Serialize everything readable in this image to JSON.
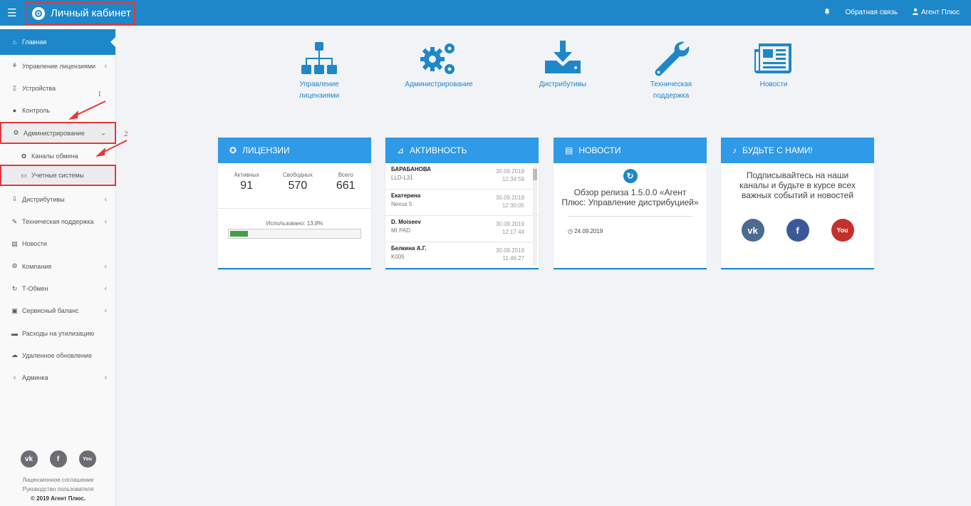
{
  "topbar": {
    "brand": "Личный кабинет",
    "feedback": "Обратная связь",
    "user": "Агент Плюс"
  },
  "sidebar": {
    "items": [
      {
        "label": "Главная",
        "icon": "home-icon"
      },
      {
        "label": "Управление лицензиями",
        "icon": "sitemap-icon"
      },
      {
        "label": "Устройства",
        "icon": "mobile-icon"
      },
      {
        "label": "Контроль",
        "icon": "globe-icon"
      },
      {
        "label": "Администрирование",
        "icon": "cogs-icon"
      },
      {
        "label": "Каналы обмена",
        "icon": "sync-icon"
      },
      {
        "label": "Учетные системы",
        "icon": "monitor-icon"
      },
      {
        "label": "Дистрибутивы",
        "icon": "download-icon"
      },
      {
        "label": "Техническая поддержка",
        "icon": "wrench-icon"
      },
      {
        "label": "Новости",
        "icon": "newspaper-icon"
      },
      {
        "label": "Компания",
        "icon": "gear-icon"
      },
      {
        "label": "Т-Обмен",
        "icon": "refresh-icon"
      },
      {
        "label": "Сервисный баланс",
        "icon": "wallet-icon"
      },
      {
        "label": "Расходы на утилизацию",
        "icon": "card-icon"
      },
      {
        "label": "Удаленное обновление",
        "icon": "cloud-icon"
      },
      {
        "label": "Админка",
        "icon": "key-icon"
      }
    ],
    "social": [
      "vk",
      "f",
      "You"
    ],
    "links": [
      "Лицензионное соглашение",
      "Руководство пользователя"
    ],
    "copyright": "© 2019 Агент Плюс."
  },
  "annotations": [
    "1",
    "2"
  ],
  "nav_tiles": [
    {
      "label": "Управление лицензиями",
      "icon": "sitemap-icon"
    },
    {
      "label": "Администрирование",
      "icon": "cogs-icon"
    },
    {
      "label": "Дистрибутивы",
      "icon": "download-icon"
    },
    {
      "label": "Техническая поддержка",
      "icon": "wrench-icon"
    },
    {
      "label": "Новости",
      "icon": "newspaper-icon"
    }
  ],
  "licenses": {
    "title": "ЛИЦЕНЗИИ",
    "active_label": "Активных",
    "active": "91",
    "free_label": "Свободных",
    "free": "570",
    "total_label": "Всего",
    "total": "661",
    "used_label": "Использовано: 13,8%",
    "used_fraction": 0.138
  },
  "activity": {
    "title": "АКТИВНОСТЬ",
    "rows": [
      {
        "name": "БАРАБАНОВА",
        "device": "LLD-L31",
        "date": "30.09.2019",
        "time": "12:34:59"
      },
      {
        "name": "Екатерина",
        "device": "Nexus 5",
        "date": "30.09.2019",
        "time": "12:30:05"
      },
      {
        "name": "D. Moiseev",
        "device": "MI PAD",
        "date": "30.09.2019",
        "time": "12:17:44"
      },
      {
        "name": "Белкина А.Г.",
        "device": "K005",
        "date": "30.09.2019",
        "time": "11:46:27"
      }
    ]
  },
  "news": {
    "title": "НОВОСТИ",
    "headline": "Обзор релиза 1.5.0.0 «Агент Плюс: Управление дистрибуцией»",
    "date": "24.09.2019"
  },
  "join": {
    "title": "БУДЬТЕ С НАМИ!",
    "text": "Подписывайтесь на наши каналы и будьте в курсе всех важных событий и новостей",
    "social": [
      {
        "name": "vk",
        "color": "#4b6b8f"
      },
      {
        "name": "f",
        "color": "#3b5998"
      },
      {
        "name": "You",
        "color": "#c4302b"
      }
    ]
  },
  "colors": {
    "primary": "#1e87c9",
    "card_header": "#2f9ae8",
    "highlight": "#e53935",
    "progress": "#43a047"
  }
}
